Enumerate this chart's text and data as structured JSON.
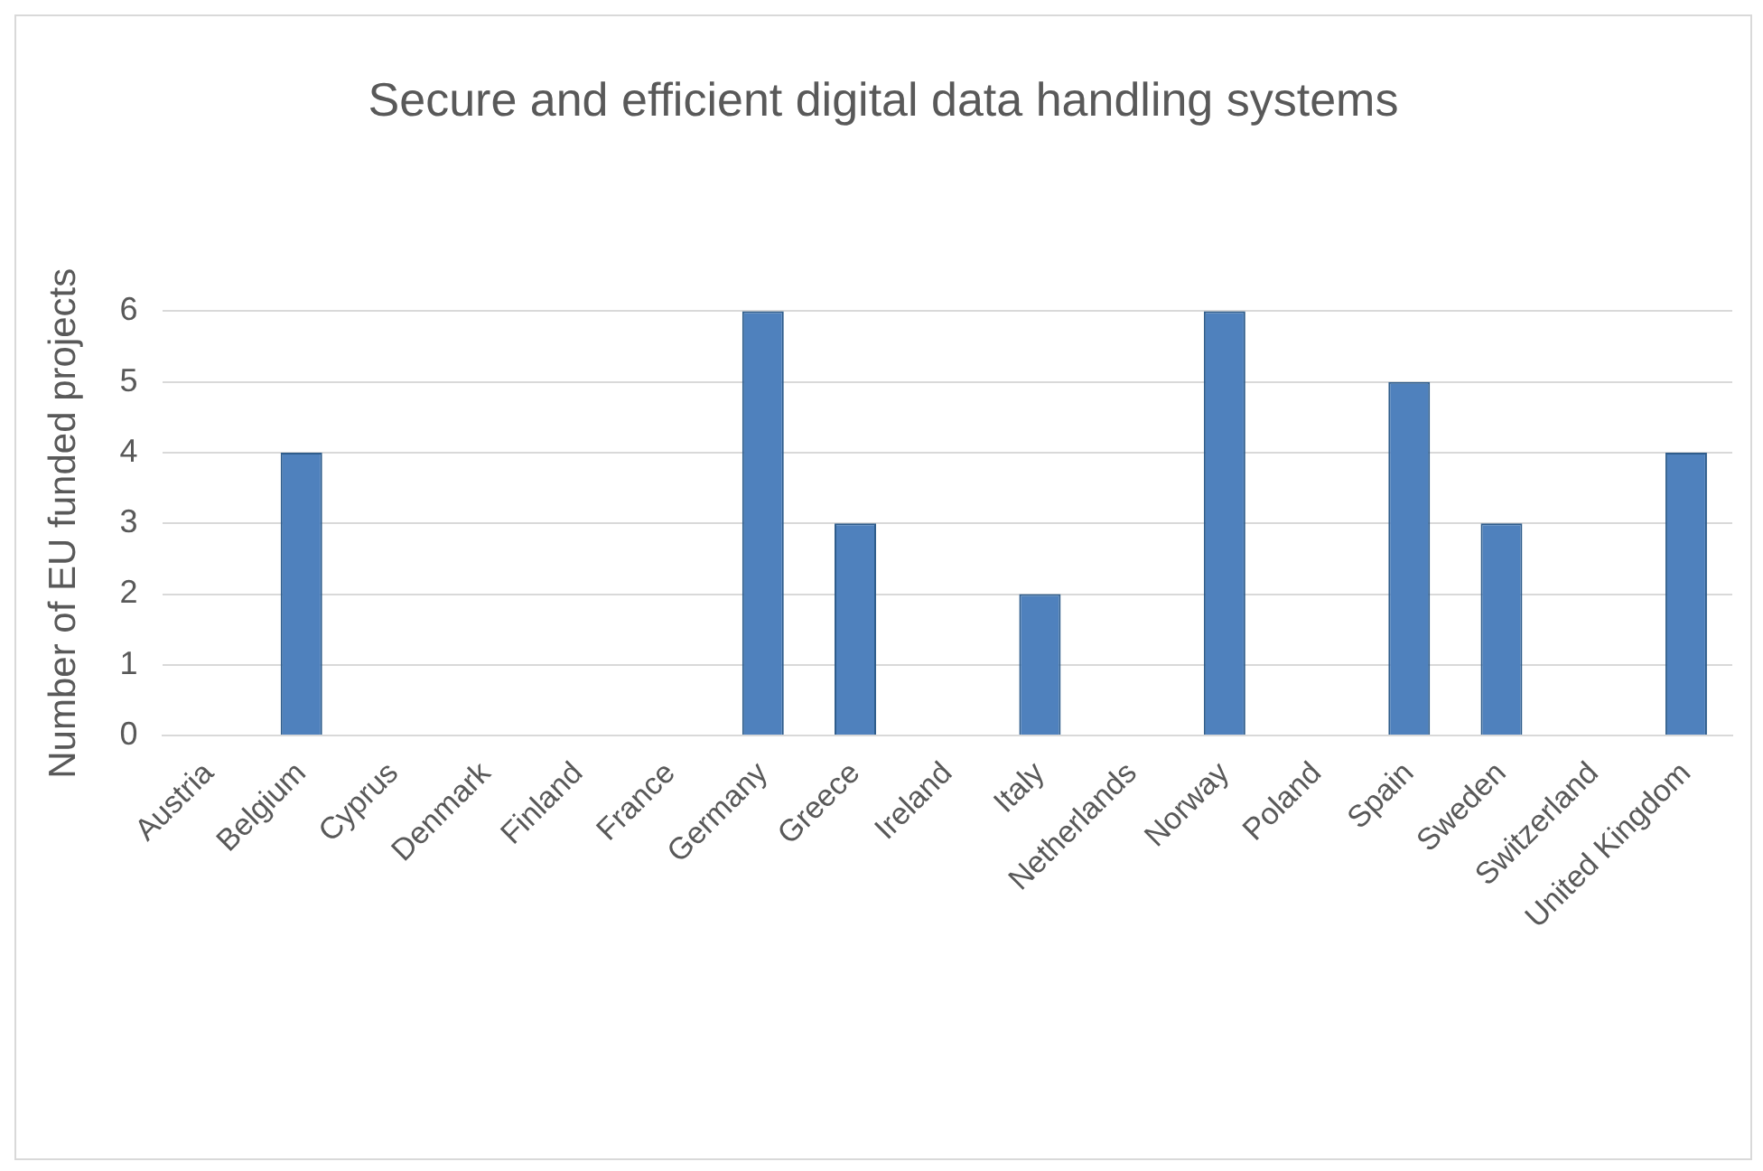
{
  "chart_data": {
    "type": "bar",
    "title": "Secure and efficient digital data handling systems",
    "ylabel": "Number of EU funded projects",
    "categories": [
      "Austria",
      "Belgium",
      "Cyprus",
      "Denmark",
      "Finland",
      "France",
      "Germany",
      "Greece",
      "Ireland",
      "Italy",
      "Netherlands",
      "Norway",
      "Poland",
      "Spain",
      "Sweden",
      "Switzerland",
      "United Kingdom"
    ],
    "values": [
      0,
      4,
      0,
      0,
      0,
      0,
      6,
      3,
      0,
      2,
      0,
      6,
      0,
      5,
      3,
      0,
      4
    ],
    "color": "#4f81bd",
    "ylim": [
      0,
      6
    ],
    "yticks": [
      0,
      1,
      2,
      3,
      4,
      5,
      6
    ],
    "grid": "y"
  }
}
